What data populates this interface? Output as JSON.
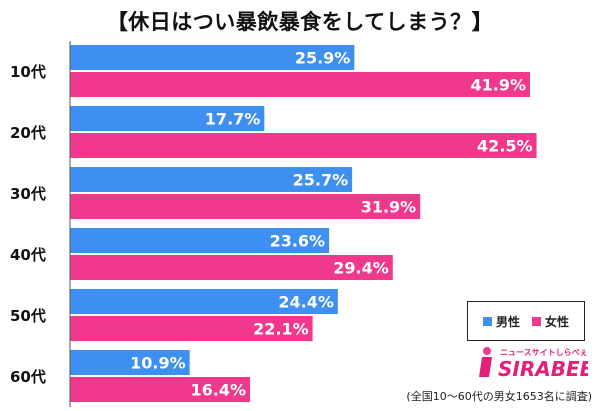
{
  "chart_data": {
    "type": "bar",
    "orientation": "horizontal",
    "title": "【休日はつい暴飲暴食をしてしまう？】",
    "categories": [
      "10代",
      "20代",
      "30代",
      "40代",
      "50代",
      "60代"
    ],
    "series": [
      {
        "name": "男性",
        "color": "#3d8ff0",
        "values": [
          25.9,
          17.7,
          25.7,
          23.6,
          24.4,
          10.9
        ]
      },
      {
        "name": "女性",
        "color": "#f0388c",
        "values": [
          41.9,
          42.5,
          31.9,
          29.4,
          22.1,
          16.4
        ]
      }
    ],
    "value_suffix": "%",
    "xlim": [
      0,
      46
    ],
    "grid": false,
    "legend_position": "bottom-right"
  },
  "legend": {
    "male": "男性",
    "female": "女性"
  },
  "logo": {
    "tagline": "ニュースサイトしらべぇ",
    "brand": "SIRABEE"
  },
  "note": "(全国10～60代の男女1653名に調査)"
}
